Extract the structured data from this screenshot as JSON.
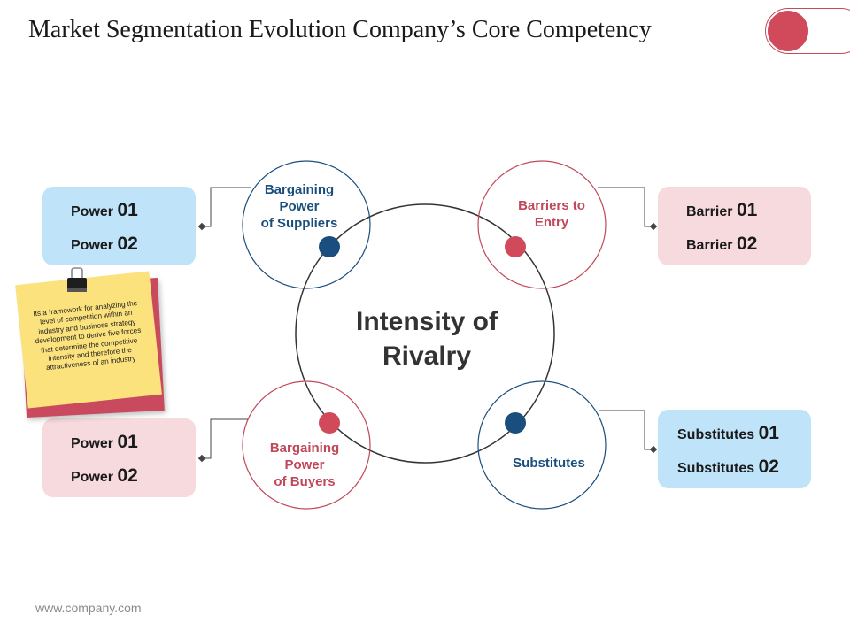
{
  "title": "Market Segmentation Evolution Company’s Core Competency",
  "center": {
    "line1": "Intensity of",
    "line2": "Rivalry"
  },
  "nodes": {
    "suppliers": {
      "lines": [
        "Bargaining",
        "Power",
        "of Suppliers"
      ],
      "color": "#1a4e7e"
    },
    "barriers": {
      "lines": [
        "Barriers to",
        "Entry"
      ],
      "color": "#c0485a"
    },
    "buyers": {
      "lines": [
        "Bargaining",
        "Power",
        "of Buyers"
      ],
      "color": "#c0485a"
    },
    "substitutes": {
      "lines": [
        "Substitutes"
      ],
      "color": "#1a4e7e"
    }
  },
  "boxes": {
    "top_left": [
      {
        "text": "Power",
        "num": "01"
      },
      {
        "text": "Power",
        "num": "02"
      }
    ],
    "top_right": [
      {
        "text": "Barrier",
        "num": "01"
      },
      {
        "text": "Barrier",
        "num": "02"
      }
    ],
    "bottom_left": [
      {
        "text": "Power",
        "num": "01"
      },
      {
        "text": "Power",
        "num": "02"
      }
    ],
    "bottom_right": [
      {
        "text": "Substitutes",
        "num": "01"
      },
      {
        "text": "Substitutes",
        "num": "02"
      }
    ]
  },
  "note": {
    "text": "Its a framework for analyzing the level of competition within an industry and business strategy development to derive five forces that determine the competitive intensity and therefore the attractiveness of an industry"
  },
  "footer": "www.company.com",
  "colors": {
    "blue": "#1a4e7e",
    "red": "#d04a5c",
    "box_blue": "#bfe3f8",
    "box_pink": "#f6dadd",
    "note_yellow": "#fbe27d"
  }
}
